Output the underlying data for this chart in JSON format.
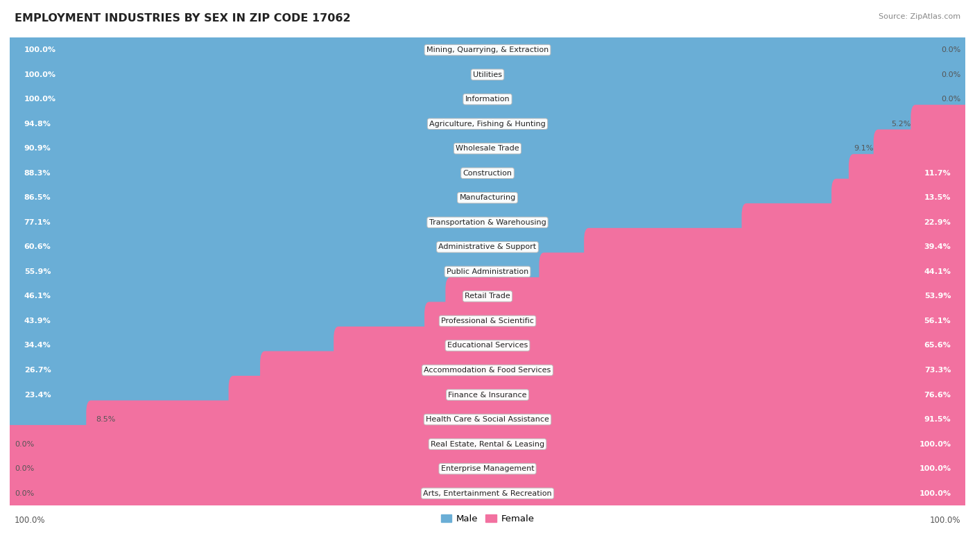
{
  "title": "EMPLOYMENT INDUSTRIES BY SEX IN ZIP CODE 17062",
  "source": "Source: ZipAtlas.com",
  "male_color": "#6aaed6",
  "female_color": "#f271a0",
  "bg_color": "#ffffff",
  "row_colors": [
    "#f5f5f5",
    "#ebebeb"
  ],
  "industries": [
    {
      "name": "Mining, Quarrying, & Extraction",
      "male": 100.0,
      "female": 0.0
    },
    {
      "name": "Utilities",
      "male": 100.0,
      "female": 0.0
    },
    {
      "name": "Information",
      "male": 100.0,
      "female": 0.0
    },
    {
      "name": "Agriculture, Fishing & Hunting",
      "male": 94.8,
      "female": 5.2
    },
    {
      "name": "Wholesale Trade",
      "male": 90.9,
      "female": 9.1
    },
    {
      "name": "Construction",
      "male": 88.3,
      "female": 11.7
    },
    {
      "name": "Manufacturing",
      "male": 86.5,
      "female": 13.5
    },
    {
      "name": "Transportation & Warehousing",
      "male": 77.1,
      "female": 22.9
    },
    {
      "name": "Administrative & Support",
      "male": 60.6,
      "female": 39.4
    },
    {
      "name": "Public Administration",
      "male": 55.9,
      "female": 44.1
    },
    {
      "name": "Retail Trade",
      "male": 46.1,
      "female": 53.9
    },
    {
      "name": "Professional & Scientific",
      "male": 43.9,
      "female": 56.1
    },
    {
      "name": "Educational Services",
      "male": 34.4,
      "female": 65.6
    },
    {
      "name": "Accommodation & Food Services",
      "male": 26.7,
      "female": 73.3
    },
    {
      "name": "Finance & Insurance",
      "male": 23.4,
      "female": 76.6
    },
    {
      "name": "Health Care & Social Assistance",
      "male": 8.5,
      "female": 91.5
    },
    {
      "name": "Real Estate, Rental & Leasing",
      "male": 0.0,
      "female": 100.0
    },
    {
      "name": "Enterprise Management",
      "male": 0.0,
      "female": 100.0
    },
    {
      "name": "Arts, Entertainment & Recreation",
      "male": 0.0,
      "female": 100.0
    }
  ],
  "legend_male": "Male",
  "legend_female": "Female",
  "bar_height": 0.55,
  "label_fontsize": 8.0,
  "title_fontsize": 11.5,
  "source_fontsize": 8.0
}
